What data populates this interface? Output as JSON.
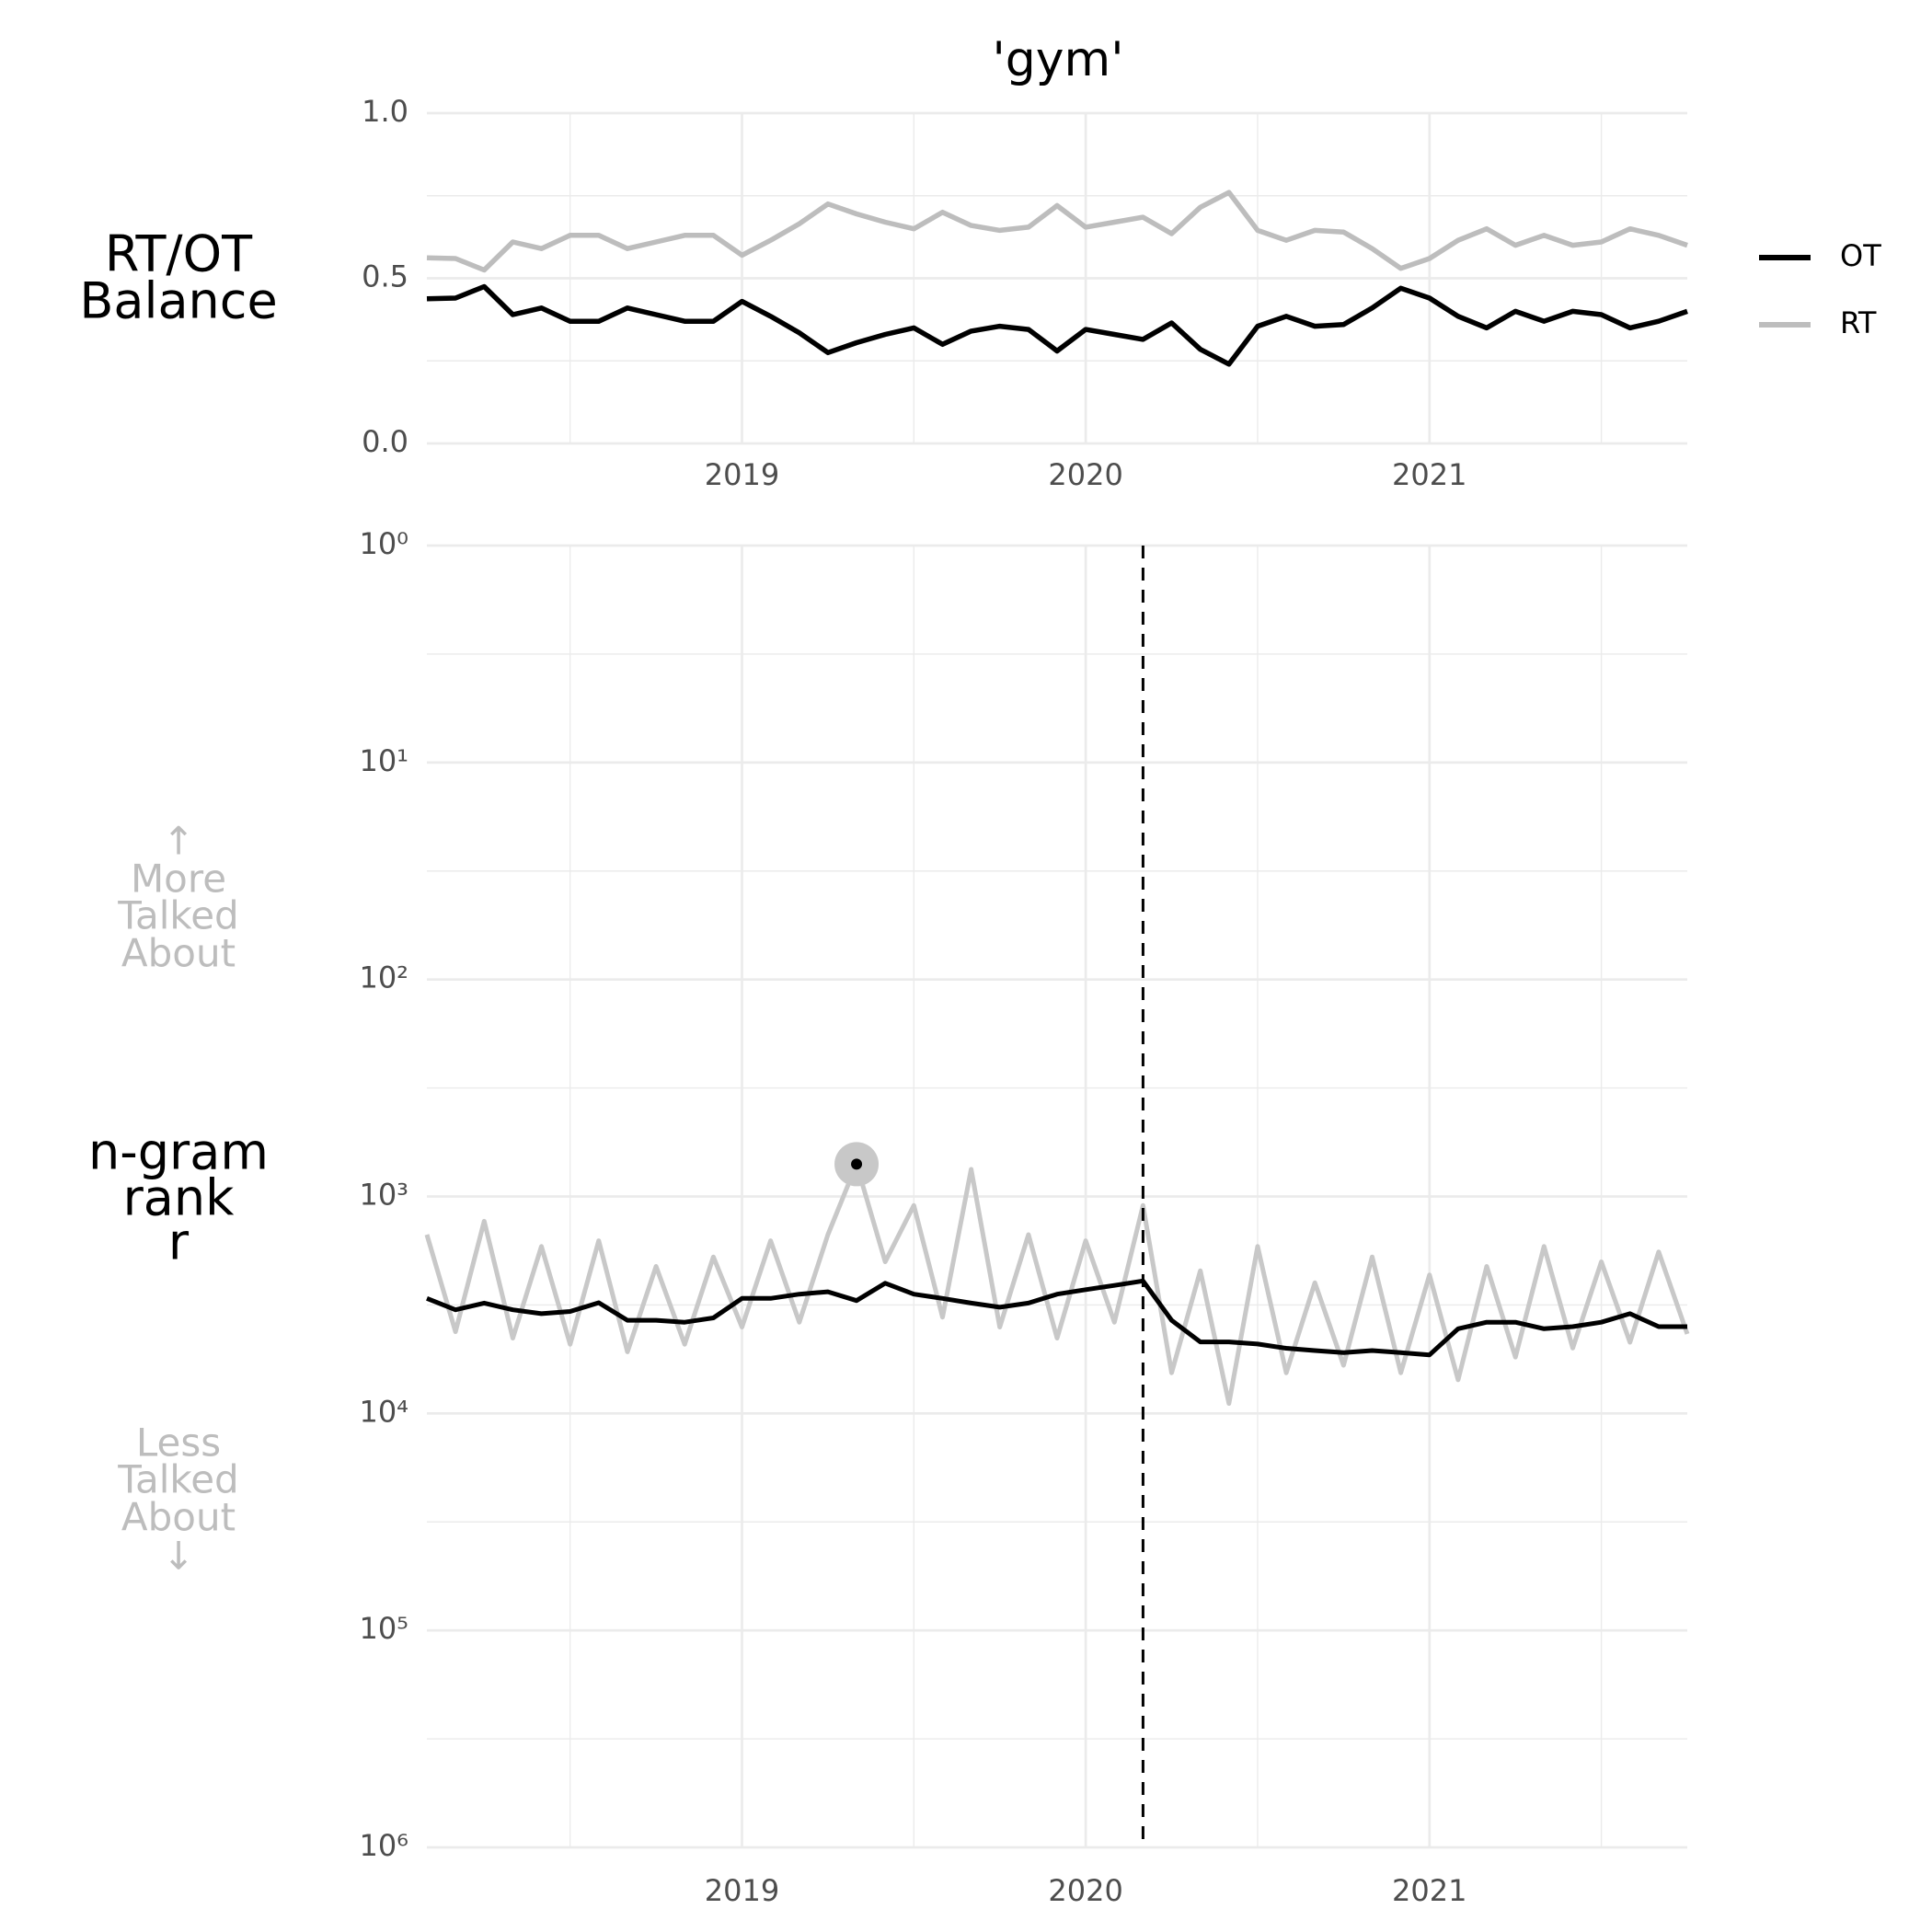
{
  "chart_data": [
    {
      "type": "line",
      "title": "'gym'",
      "ylabel": [
        "RT/OT",
        "Balance"
      ],
      "x": [
        "2018-02",
        "2018-03",
        "2018-04",
        "2018-05",
        "2018-06",
        "2018-07",
        "2018-08",
        "2018-09",
        "2018-10",
        "2018-11",
        "2018-12",
        "2019-01",
        "2019-02",
        "2019-03",
        "2019-04",
        "2019-05",
        "2019-06",
        "2019-07",
        "2019-08",
        "2019-09",
        "2019-10",
        "2019-11",
        "2019-12",
        "2020-01",
        "2020-02",
        "2020-03",
        "2020-04",
        "2020-05",
        "2020-06",
        "2020-07",
        "2020-08",
        "2020-09",
        "2020-10",
        "2020-11",
        "2020-12",
        "2021-01",
        "2021-02",
        "2021-03",
        "2021-04",
        "2021-05",
        "2021-06",
        "2021-07",
        "2021-08",
        "2021-09",
        "2021-10"
      ],
      "series": [
        {
          "name": "OT",
          "color": "#000000",
          "values": [
            0.438,
            0.44,
            0.475,
            0.39,
            0.41,
            0.37,
            0.37,
            0.41,
            0.39,
            0.37,
            0.37,
            0.43,
            0.385,
            0.335,
            0.275,
            0.305,
            0.33,
            0.35,
            0.3,
            0.34,
            0.355,
            0.345,
            0.28,
            0.345,
            0.33,
            0.315,
            0.365,
            0.285,
            0.24,
            0.355,
            0.385,
            0.355,
            0.36,
            0.41,
            0.47,
            0.44,
            0.385,
            0.35,
            0.4,
            0.37,
            0.4,
            0.39,
            0.35,
            0.37,
            0.4
          ]
        },
        {
          "name": "RT",
          "color": "#bdbdbd",
          "values": [
            0.562,
            0.56,
            0.525,
            0.61,
            0.59,
            0.63,
            0.63,
            0.59,
            0.61,
            0.63,
            0.63,
            0.57,
            0.615,
            0.665,
            0.725,
            0.695,
            0.67,
            0.65,
            0.7,
            0.66,
            0.645,
            0.655,
            0.72,
            0.655,
            0.67,
            0.685,
            0.635,
            0.715,
            0.76,
            0.645,
            0.615,
            0.645,
            0.64,
            0.59,
            0.53,
            0.56,
            0.615,
            0.65,
            0.6,
            0.63,
            0.6,
            0.61,
            0.65,
            0.63,
            0.6
          ]
        }
      ],
      "xlim": [
        "2018-02",
        "2021-10"
      ],
      "xticks": [
        "2019",
        "2020",
        "2021"
      ],
      "xticks_minor": [
        "2018-07",
        "2019-07",
        "2020-07",
        "2021-07"
      ],
      "ylim": [
        0,
        1
      ],
      "yticks": [
        {
          "value": 0,
          "label": "0.0"
        },
        0.5,
        {
          "value": 1,
          "label": "1.0"
        }
      ],
      "yticks_minor": [
        0.25,
        0.75
      ],
      "grid": true,
      "legend": "right"
    },
    {
      "type": "line",
      "ylabel": [
        "n-gram",
        "rank",
        "r"
      ],
      "upper_note": [
        "↑",
        "More",
        "Talked",
        "About"
      ],
      "lower_note": [
        "Less",
        "Talked",
        "About",
        "↓"
      ],
      "x": [
        "2018-02",
        "2018-03",
        "2018-04",
        "2018-05",
        "2018-06",
        "2018-07",
        "2018-08",
        "2018-09",
        "2018-10",
        "2018-11",
        "2018-12",
        "2019-01",
        "2019-02",
        "2019-03",
        "2019-04",
        "2019-05",
        "2019-06",
        "2019-07",
        "2019-08",
        "2019-09",
        "2019-10",
        "2019-11",
        "2019-12",
        "2020-01",
        "2020-02",
        "2020-03",
        "2020-04",
        "2020-05",
        "2020-06",
        "2020-07",
        "2020-08",
        "2020-09",
        "2020-10",
        "2020-11",
        "2020-12",
        "2021-01",
        "2021-02",
        "2021-03",
        "2021-04",
        "2021-05",
        "2021-06",
        "2021-07",
        "2021-08",
        "2021-09",
        "2021-10"
      ],
      "series": [
        {
          "name": "RT",
          "color": "#c8c8c8",
          "values": [
            1500,
            4200,
            1300,
            4500,
            1700,
            4800,
            1600,
            5200,
            2100,
            4800,
            1900,
            4000,
            1600,
            3800,
            1500,
            710,
            2000,
            1100,
            3600,
            750,
            4000,
            1500,
            4500,
            1600,
            3800,
            1100,
            6500,
            2200,
            9000,
            1700,
            6500,
            2500,
            6000,
            1900,
            6500,
            2300,
            7000,
            2100,
            5500,
            1700,
            5000,
            2000,
            4700,
            1800,
            4300
          ]
        },
        {
          "name": "OT",
          "color": "#000000",
          "values": [
            2950,
            3330,
            3100,
            3330,
            3470,
            3390,
            3090,
            3720,
            3720,
            3800,
            3630,
            2950,
            2950,
            2820,
            2750,
            3020,
            2510,
            2820,
            2950,
            3100,
            3240,
            3100,
            2820,
            2690,
            2570,
            2450,
            3720,
            4680,
            4680,
            4790,
            5010,
            5130,
            5250,
            5130,
            5250,
            5370,
            4070,
            3800,
            3800,
            4070,
            3980,
            3800,
            3470,
            3980,
            3980
          ]
        }
      ],
      "annotation": {
        "x": "2019-05",
        "value": 710
      },
      "vline": "2020-03",
      "xlim": [
        "2018-02",
        "2021-10"
      ],
      "xticks": [
        "2019",
        "2020",
        "2021"
      ],
      "xticks_minor": [
        "2018-07",
        "2019-07",
        "2020-07",
        "2021-07"
      ],
      "log_y": true,
      "y_inverted": true,
      "ylim": [
        1,
        1000000
      ],
      "yticks": [
        {
          "value": 1,
          "label": "10⁰"
        },
        {
          "value": 10,
          "label": "10¹"
        },
        {
          "value": 100,
          "label": "10²"
        },
        {
          "value": 1000,
          "label": "10³"
        },
        {
          "value": 10000,
          "label": "10⁴"
        },
        {
          "value": 100000,
          "label": "10⁵"
        },
        {
          "value": 1000000,
          "label": "10⁶"
        }
      ],
      "yticks_minor": [
        3.1623,
        31.623,
        316.23,
        3162.3,
        31623,
        316230
      ],
      "grid": true
    }
  ]
}
